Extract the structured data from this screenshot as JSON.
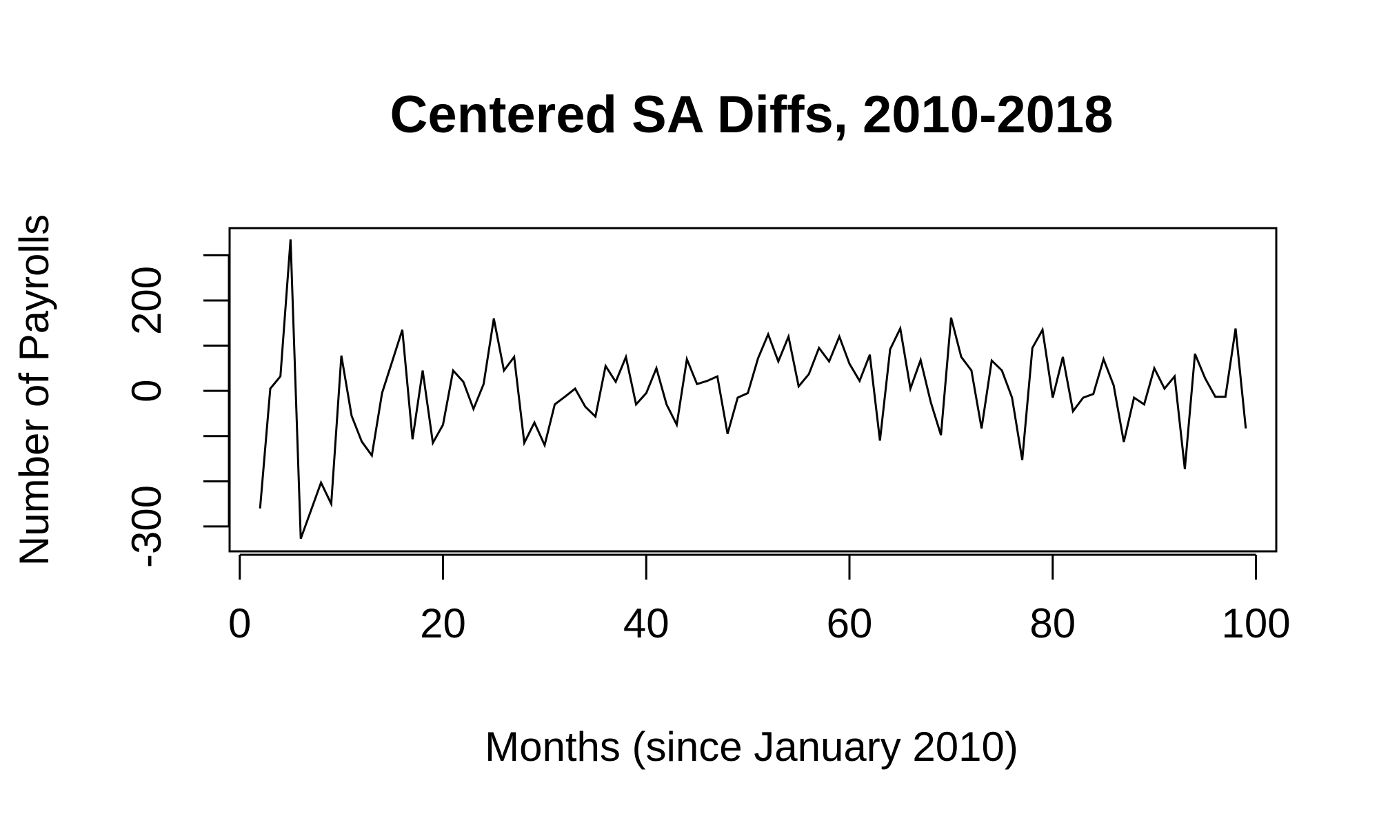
{
  "chart_data": {
    "type": "line",
    "title": "Centered SA Diffs, 2010-2018",
    "xlabel": "Months (since January 2010)",
    "ylabel": "Number of Payrolls",
    "xlim": [
      -1,
      102
    ],
    "ylim": [
      -355,
      360
    ],
    "x_ticks": [
      0,
      20,
      40,
      60,
      80,
      100
    ],
    "x_tick_labels": [
      "0",
      "20",
      "40",
      "60",
      "80",
      "100"
    ],
    "y_ticks": [
      -300,
      -200,
      -100,
      0,
      100,
      200,
      300
    ],
    "y_tick_labels": [
      {
        "value": -300,
        "label": "-300"
      },
      {
        "value": 0,
        "label": "0"
      },
      {
        "value": 200,
        "label": "200"
      }
    ],
    "grid": false,
    "legend": "none",
    "line_color": "#000000",
    "series": [
      {
        "x": [
          2,
          3,
          4,
          5,
          6,
          7,
          8,
          9,
          10,
          11,
          12,
          13,
          14,
          15,
          16,
          17,
          18,
          19,
          20,
          21,
          22,
          23,
          24,
          25,
          26,
          27,
          28,
          29,
          30,
          31,
          32,
          33,
          34,
          35,
          36,
          37,
          38,
          39,
          40,
          41,
          42,
          43,
          44,
          45,
          46,
          47,
          48,
          49,
          50,
          51,
          52,
          53,
          54,
          55,
          56,
          57,
          58,
          59,
          60,
          61,
          62,
          63,
          64,
          65,
          66,
          67,
          68,
          69,
          70,
          71,
          72,
          73,
          74,
          75,
          76,
          77,
          78,
          79,
          80,
          81,
          82,
          83,
          84,
          85,
          86,
          87,
          88,
          89,
          90,
          91,
          92,
          93,
          94,
          95,
          96,
          97,
          98,
          99
        ],
        "values": [
          -260,
          5,
          32,
          335,
          -327,
          -265,
          -203,
          -250,
          78,
          -55,
          -112,
          -143,
          -5,
          65,
          135,
          -107,
          45,
          -115,
          -75,
          45,
          20,
          -40,
          15,
          160,
          45,
          75,
          -115,
          -70,
          -120,
          -30,
          -13,
          5,
          -35,
          -57,
          55,
          20,
          75,
          -30,
          -5,
          50,
          -30,
          -75,
          70,
          15,
          22,
          32,
          -95,
          -15,
          -5,
          72,
          125,
          65,
          120,
          10,
          37,
          95,
          65,
          120,
          60,
          22,
          80,
          -110,
          92,
          138,
          5,
          68,
          -25,
          -98,
          162,
          75,
          45,
          -83,
          67,
          45,
          -15,
          -153,
          95,
          135,
          -15,
          75,
          -45,
          -15,
          -7,
          70,
          12,
          -113,
          -15,
          -30,
          50,
          5,
          32,
          -173,
          82,
          28,
          -13,
          -13,
          138,
          -83
        ]
      }
    ]
  }
}
